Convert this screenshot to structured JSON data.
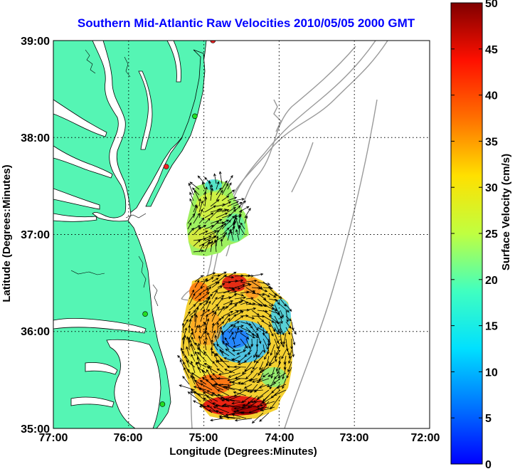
{
  "title": "Southern Mid-Atlantic Raw Velocities 2010/05/05 2000 GMT",
  "x_axis": {
    "label": "Longitude (Degrees:Minutes)",
    "ticks": [
      "77:00",
      "76:00",
      "75:00",
      "74:00",
      "73:00",
      "72:00"
    ]
  },
  "y_axis": {
    "label": "Latitude (Degrees:Minutes)",
    "ticks": [
      "39:00",
      "38:00",
      "37:00",
      "36:00",
      "35:00"
    ]
  },
  "colorbar": {
    "label": "Surface Velocity (cm/s)",
    "ticks": [
      "50",
      "45",
      "40",
      "35",
      "30",
      "25",
      "20",
      "15",
      "10",
      "5",
      "0"
    ],
    "range": [
      0,
      50
    ]
  },
  "colors": {
    "land": "#55f5b4",
    "coast": "#000000",
    "bathymetry": "#9a9a9a",
    "title": "#0000ff",
    "station_green": "#22dd22",
    "station_red": "#ee2222"
  },
  "map": {
    "lon_range": [
      -77,
      -72
    ],
    "lat_range": [
      35,
      39
    ],
    "grid": true,
    "stations": [
      {
        "lon": -74.88,
        "lat": 39.0,
        "status": "red"
      },
      {
        "lon": -75.12,
        "lat": 38.22,
        "status": "green"
      },
      {
        "lon": -75.5,
        "lat": 37.7,
        "status": "red"
      },
      {
        "lon": -75.78,
        "lat": 36.18,
        "status": "green"
      },
      {
        "lon": -75.55,
        "lat": 35.25,
        "status": "green"
      }
    ]
  }
}
